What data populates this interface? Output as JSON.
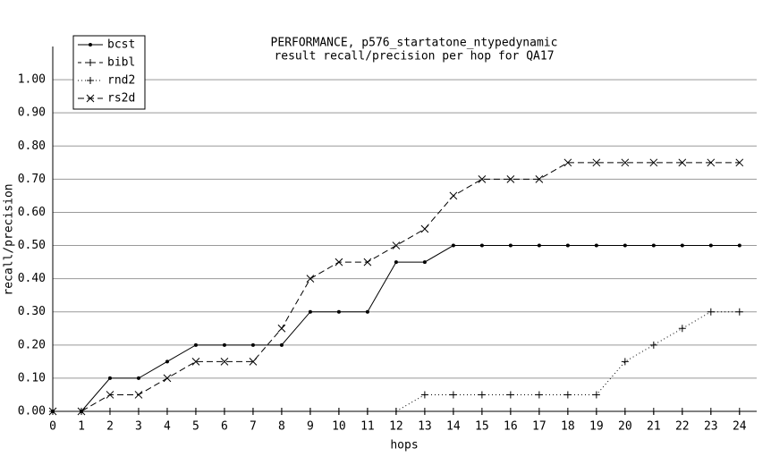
{
  "chart_data": {
    "type": "line",
    "title": "PERFORMANCE, p576_startatone_ntypedynamic",
    "subtitle": "result recall/precision per hop for QA17",
    "x_label": "hops",
    "y_label": "recall/precision",
    "x": [
      0,
      1,
      2,
      3,
      4,
      5,
      6,
      7,
      8,
      9,
      10,
      11,
      12,
      13,
      14,
      15,
      16,
      17,
      18,
      19,
      20,
      21,
      22,
      23,
      24
    ],
    "series": [
      {
        "name": "bcst",
        "color": "#000000",
        "marker": "dot",
        "dash": "solid",
        "values": [
          0,
          0,
          0.1,
          0.1,
          0.15,
          0.2,
          0.2,
          0.2,
          0.2,
          0.3,
          0.3,
          0.3,
          0.45,
          0.45,
          0.5,
          0.5,
          0.5,
          0.5,
          0.5,
          0.5,
          0.5,
          0.5,
          0.5,
          0.5,
          0.5
        ]
      },
      {
        "name": "bibl",
        "color": "#000000",
        "marker": "plus",
        "dash": "dashed",
        "values": [
          0,
          0,
          0,
          0,
          0,
          0,
          0,
          0,
          0,
          0,
          0,
          0,
          0,
          0,
          0,
          0,
          0,
          0,
          0,
          0,
          0,
          0,
          0,
          0,
          0
        ]
      },
      {
        "name": "rnd2",
        "color": "#000000",
        "marker": "plus",
        "dash": "dotted",
        "values": [
          0,
          0,
          0,
          0,
          0,
          0,
          0,
          0,
          0,
          0,
          0,
          0,
          0,
          0.05,
          0.05,
          0.05,
          0.05,
          0.05,
          0.05,
          0.05,
          0.15,
          0.2,
          0.25,
          0.3,
          0.3
        ]
      },
      {
        "name": "rs2d",
        "color": "#000000",
        "marker": "cross",
        "dash": "longdash",
        "values": [
          0,
          0,
          0.05,
          0.05,
          0.1,
          0.15,
          0.15,
          0.15,
          0.25,
          0.4,
          0.45,
          0.45,
          0.5,
          0.55,
          0.65,
          0.7,
          0.7,
          0.7,
          0.75,
          0.75,
          0.75,
          0.75,
          0.75,
          0.75,
          0.75
        ]
      }
    ],
    "xlim": [
      0,
      24.6
    ],
    "xticks": [
      0,
      1,
      2,
      3,
      4,
      5,
      6,
      7,
      8,
      9,
      10,
      11,
      12,
      13,
      14,
      15,
      16,
      17,
      18,
      19,
      20,
      21,
      22,
      23,
      24
    ],
    "ylim": [
      0,
      1.1
    ],
    "yticks": [
      {
        "value": 0,
        "label": "0.00"
      },
      {
        "value": 0.1,
        "label": "0.10"
      },
      {
        "value": 0.2,
        "label": "0.20"
      },
      {
        "value": 0.3,
        "label": "0.30"
      },
      {
        "value": 0.4,
        "label": "0.40"
      },
      {
        "value": 0.5,
        "label": "0.50"
      },
      {
        "value": 0.6,
        "label": "0.60"
      },
      {
        "value": 0.7,
        "label": "0.70"
      },
      {
        "value": 0.8,
        "label": "0.80"
      },
      {
        "value": 0.9,
        "label": "0.90"
      },
      {
        "value": 1.0,
        "label": "1.00"
      }
    ],
    "grid": true,
    "legend": "upper left"
  }
}
